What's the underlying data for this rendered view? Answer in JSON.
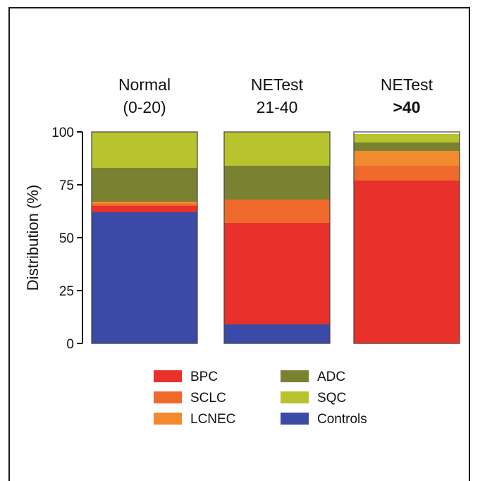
{
  "chart_data": {
    "type": "bar",
    "stacked": true,
    "categories": [
      {
        "line1": "Normal",
        "line2": "(0-20)",
        "line2_bold": false
      },
      {
        "line1": "NETest",
        "line2": "21-40",
        "line2_bold": false
      },
      {
        "line1": "NETest",
        "line2": ">40",
        "line2_bold": true
      }
    ],
    "ylabel": "Distribution (%)",
    "ylim": [
      0,
      100
    ],
    "yticks": [
      0,
      25,
      50,
      75,
      100
    ],
    "grid": false,
    "legend_position": "bottom",
    "series": [
      {
        "name": "Controls",
        "color": "#3a4aa6",
        "values": [
          62,
          9,
          0
        ]
      },
      {
        "name": "BPC",
        "color": "#e8312a",
        "values": [
          3,
          48,
          77
        ]
      },
      {
        "name": "SCLC",
        "color": "#ef6a2a",
        "values": [
          1,
          11,
          7
        ]
      },
      {
        "name": "LCNEC",
        "color": "#f28a2e",
        "values": [
          1,
          0,
          7
        ]
      },
      {
        "name": "ADC",
        "color": "#7a8232",
        "values": [
          16,
          16,
          4
        ]
      },
      {
        "name": "SQC",
        "color": "#b8c42e",
        "values": [
          17,
          16,
          4
        ]
      }
    ],
    "legend_order": [
      "BPC",
      "SCLC",
      "LCNEC",
      "ADC",
      "SQC",
      "Controls"
    ]
  }
}
